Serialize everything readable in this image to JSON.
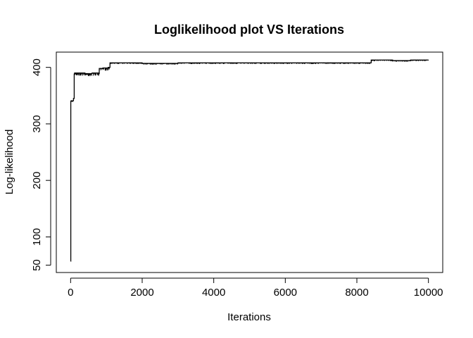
{
  "chart_data": {
    "type": "line",
    "title": "Loglikelihood plot VS Iterations",
    "xlabel": "Iterations",
    "ylabel": "Log-likelihood",
    "xlim": [
      -400,
      10400
    ],
    "ylim": [
      37,
      427
    ],
    "xticks": [
      0,
      2000,
      4000,
      6000,
      8000,
      10000
    ],
    "yticks": [
      50,
      100,
      200,
      300,
      400
    ],
    "grid": false,
    "legend": "none",
    "line_color": "#000000",
    "series": [
      {
        "x": [
          0,
          5,
          15,
          30,
          60,
          80,
          100,
          110,
          200,
          400,
          600,
          780,
          800,
          900,
          1050,
          1100,
          1500,
          2000,
          3000,
          4000,
          5000,
          6000,
          7000,
          8000,
          8350,
          8400,
          9000,
          9500,
          10000
        ],
        "y": [
          57,
          340,
          341,
          340,
          341,
          345,
          388,
          390,
          390,
          389,
          390,
          389,
          398,
          399,
          400,
          408,
          408,
          407,
          408,
          408,
          408,
          408,
          408,
          408,
          408,
          413,
          412,
          413,
          413
        ]
      }
    ]
  }
}
